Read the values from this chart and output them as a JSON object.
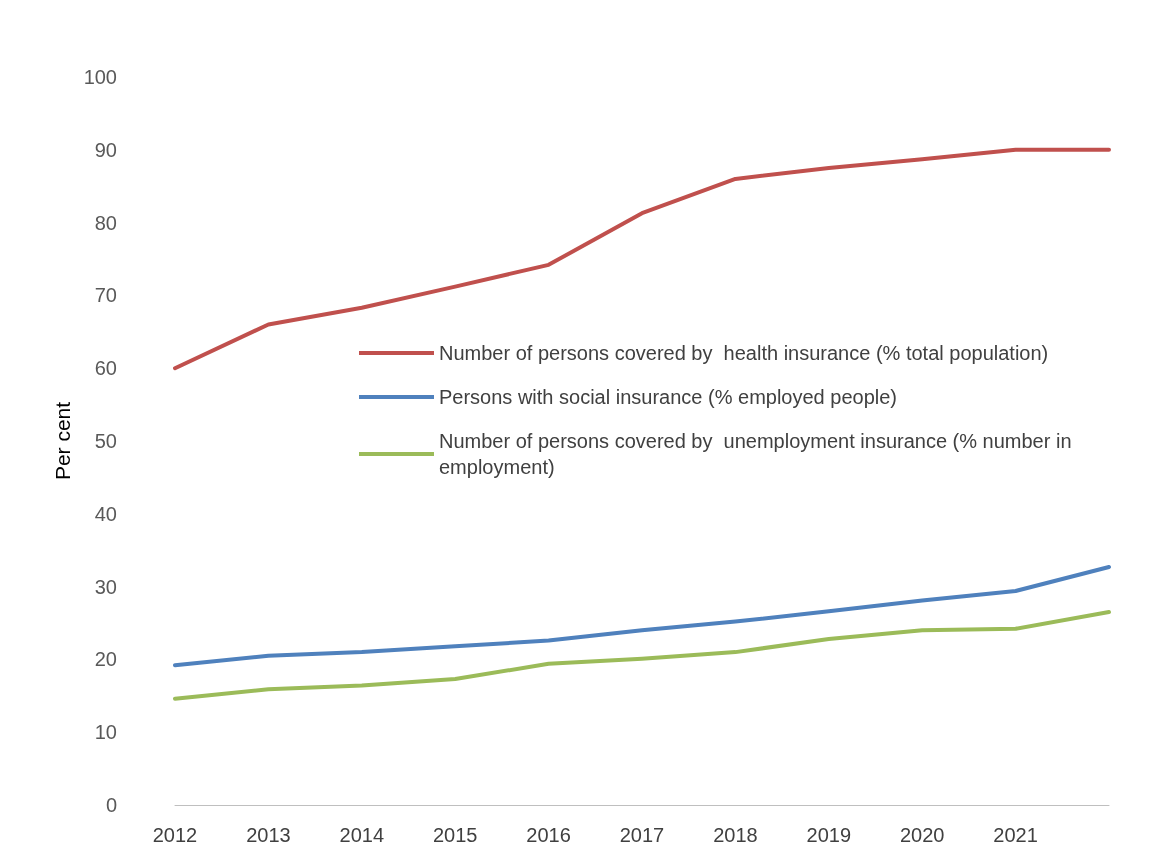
{
  "chart_data": {
    "type": "line",
    "ylabel": "Per cent",
    "categories": [
      "2012",
      "2013",
      "2014",
      "2015",
      "2016",
      "2017",
      "2018",
      "2019",
      "2020",
      "2021",
      null
    ],
    "series": [
      {
        "name": "Number of persons covered by  health insurance (% total population)",
        "color": "#c0504d",
        "values": [
          60,
          66,
          68.3,
          71.2,
          74.2,
          81.3,
          86,
          87.5,
          88.7,
          90,
          90
        ]
      },
      {
        "name": "Persons with social insurance (% employed people)",
        "color": "#4f81bd",
        "values": [
          19.2,
          20.5,
          21,
          21.8,
          22.6,
          24,
          25.2,
          26.6,
          28.1,
          29.4,
          32.7
        ]
      },
      {
        "name": "Number of persons covered by  unemployment insurance (% number in employment)",
        "color": "#9bbb59",
        "values": [
          14.6,
          15.9,
          16.4,
          17.3,
          19.4,
          20.1,
          21,
          22.8,
          24,
          24.2,
          26.5
        ]
      }
    ],
    "ylim": [
      0,
      100
    ],
    "yticks": [
      0,
      10,
      20,
      30,
      40,
      50,
      60,
      70,
      80,
      90,
      100
    ],
    "grid": false,
    "legend": "right",
    "marker": "none",
    "line_style": "solid"
  }
}
